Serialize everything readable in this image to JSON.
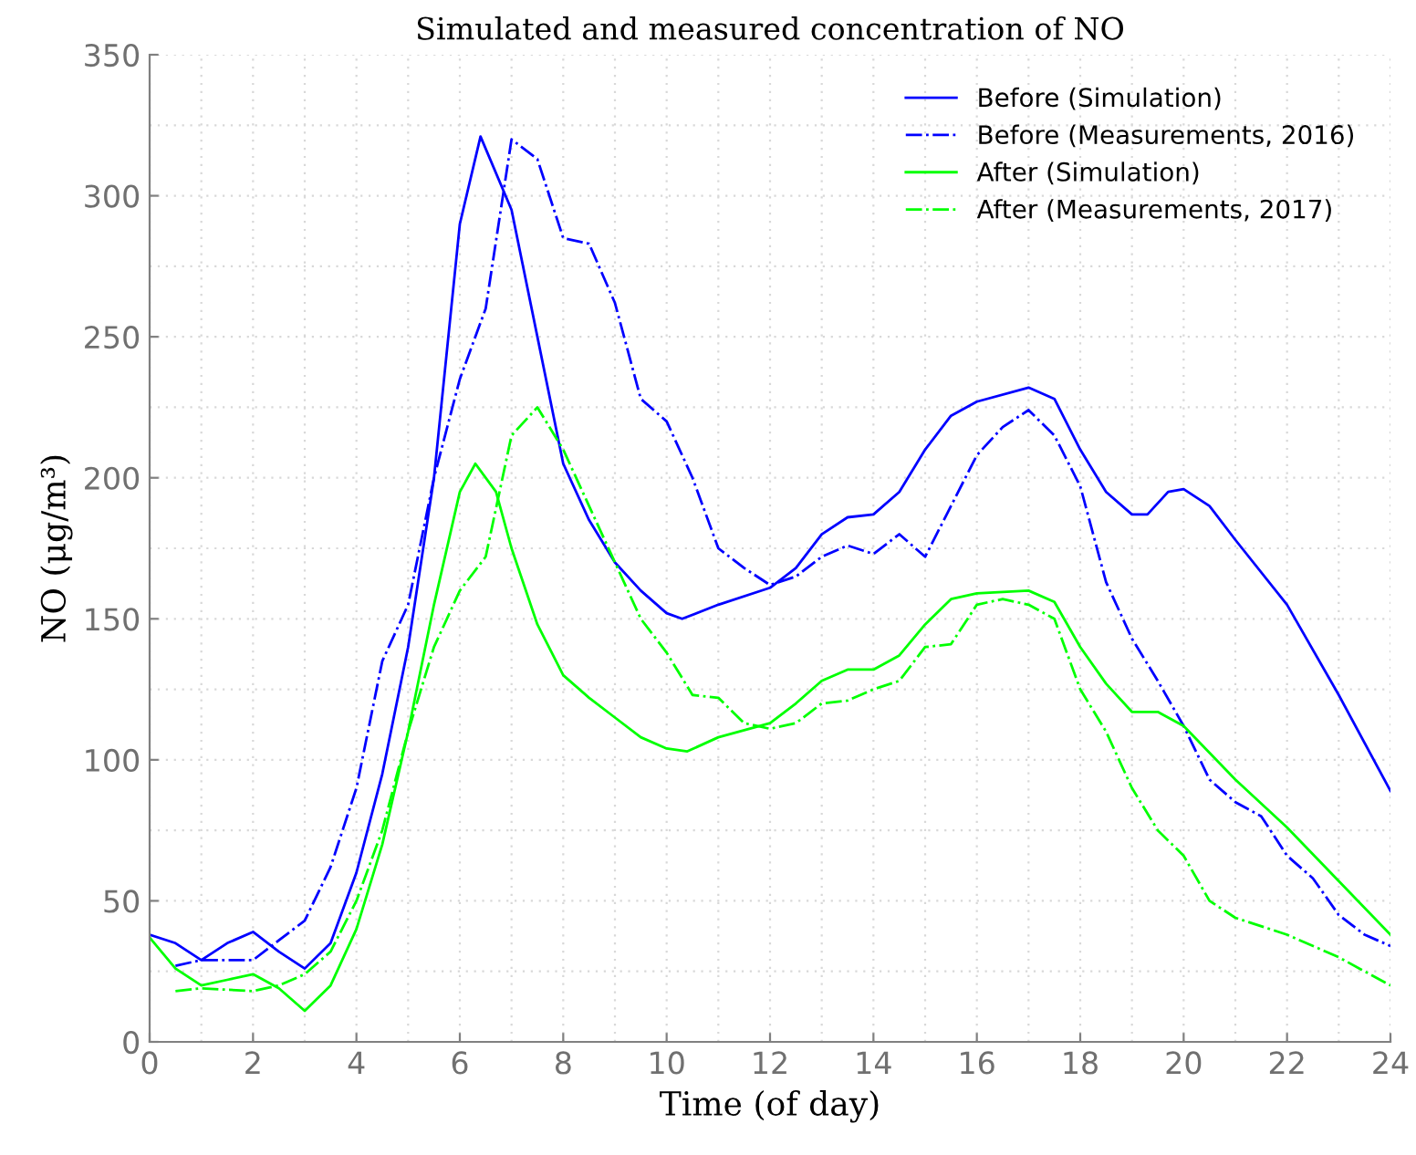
{
  "chart_data": {
    "type": "line",
    "title": "Simulated and measured concentration of NO",
    "xlabel": "Time (of day)",
    "ylabel": "NO (μg/m³)",
    "xlim": [
      0,
      24
    ],
    "xticks": [
      0,
      2,
      4,
      6,
      8,
      10,
      12,
      14,
      16,
      18,
      20,
      22,
      24
    ],
    "ylim": [
      0,
      350
    ],
    "yticks": [
      0,
      50,
      100,
      150,
      200,
      250,
      300,
      350
    ],
    "grid": true,
    "legend": "top right",
    "marker": "none",
    "series": [
      {
        "name": "Before (Simulation)",
        "color": "#0000ff",
        "line_style": "solid",
        "x": [
          0,
          0.5,
          1,
          1.5,
          2,
          2.5,
          3,
          3.5,
          4,
          4.5,
          5,
          5.5,
          6,
          6.4,
          7,
          7.5,
          8,
          8.5,
          9,
          9.5,
          10,
          10.3,
          11,
          12,
          12.5,
          13,
          13.5,
          14,
          14.5,
          15,
          15.5,
          16,
          17,
          17.5,
          18,
          18.5,
          19,
          19.3,
          19.7,
          20,
          20.5,
          21,
          22,
          23,
          24
        ],
        "values": [
          38,
          35,
          29,
          35,
          39,
          32,
          26,
          35,
          60,
          95,
          140,
          200,
          290,
          321,
          295,
          250,
          205,
          185,
          170,
          160,
          152,
          150,
          155,
          161,
          168,
          180,
          186,
          187,
          195,
          210,
          222,
          227,
          232,
          228,
          210,
          195,
          187,
          187,
          195,
          196,
          190,
          178,
          155,
          123,
          89
        ]
      },
      {
        "name": "Before (Measurements, 2016)",
        "color": "#0000ff",
        "line_style": "dashdot",
        "x": [
          0.5,
          1,
          2,
          2.5,
          3,
          3.5,
          4,
          4.5,
          5,
          5.5,
          6,
          6.5,
          7,
          7.5,
          8,
          8.5,
          9,
          9.5,
          10,
          10.5,
          11,
          11.5,
          12,
          12.5,
          13,
          13.5,
          14,
          14.5,
          15,
          15.5,
          16,
          16.5,
          17,
          17.5,
          18,
          18.5,
          19,
          19.5,
          20,
          20.5,
          21,
          21.5,
          22,
          22.5,
          23,
          23.5,
          24
        ],
        "values": [
          27,
          29,
          29,
          36,
          43,
          62,
          90,
          135,
          155,
          200,
          235,
          260,
          320,
          313,
          285,
          283,
          262,
          228,
          220,
          200,
          175,
          168,
          162,
          165,
          172,
          176,
          173,
          180,
          172,
          190,
          208,
          218,
          224,
          215,
          197,
          163,
          143,
          128,
          112,
          93,
          85,
          80,
          66,
          58,
          45,
          38,
          34
        ]
      },
      {
        "name": "After (Simulation)",
        "color": "#00ff00",
        "line_style": "solid",
        "x": [
          0,
          0.5,
          1,
          1.5,
          2,
          2.5,
          3,
          3.5,
          4,
          4.5,
          5,
          5.5,
          6,
          6.3,
          6.7,
          7,
          7.5,
          8,
          8.5,
          9,
          9.5,
          10,
          10.4,
          11,
          12,
          12.5,
          13,
          13.5,
          14,
          14.5,
          15,
          15.5,
          16,
          17,
          17.5,
          18,
          18.5,
          19,
          19.5,
          20,
          21,
          22,
          23,
          24
        ],
        "values": [
          37,
          26,
          20,
          22,
          24,
          19,
          11,
          20,
          40,
          70,
          110,
          155,
          195,
          205,
          195,
          175,
          148,
          130,
          122,
          115,
          108,
          104,
          103,
          108,
          113,
          120,
          128,
          132,
          132,
          137,
          148,
          157,
          159,
          160,
          156,
          140,
          127,
          117,
          117,
          112,
          93,
          76,
          57,
          38
        ]
      },
      {
        "name": "After (Measurements, 2017)",
        "color": "#00ff00",
        "line_style": "dashdot",
        "x": [
          0.5,
          1,
          2,
          2.5,
          3,
          3.5,
          4,
          4.5,
          5,
          5.5,
          6,
          6.5,
          7,
          7.5,
          8,
          8.5,
          9,
          9.5,
          10,
          10.5,
          11,
          11.5,
          12,
          12.5,
          13,
          13.5,
          14,
          14.5,
          15,
          15.5,
          16,
          16.5,
          17,
          17.5,
          18,
          18.5,
          19,
          19.5,
          20,
          20.5,
          21,
          22,
          23,
          24
        ],
        "values": [
          18,
          19,
          18,
          20,
          24,
          32,
          50,
          75,
          110,
          140,
          160,
          172,
          215,
          225,
          210,
          190,
          170,
          150,
          138,
          123,
          122,
          113,
          111,
          113,
          120,
          121,
          125,
          128,
          140,
          141,
          155,
          157,
          155,
          150,
          125,
          110,
          90,
          75,
          66,
          50,
          44,
          38,
          30,
          20
        ]
      }
    ]
  }
}
